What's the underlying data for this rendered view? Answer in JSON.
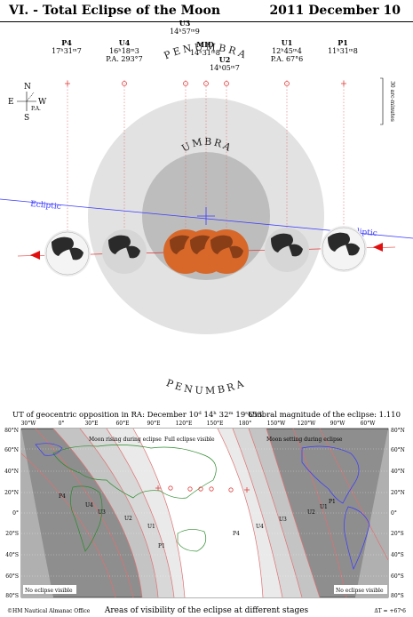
{
  "title": {
    "left": "VI. - Total Eclipse of the Moon",
    "right": "2011 December 10"
  },
  "phases": [
    {
      "id": "p4",
      "name": "P4",
      "time": "17ʰ31ᵐ7",
      "pa": ""
    },
    {
      "id": "u4",
      "name": "U4",
      "time": "16ʰ18ᵐ3",
      "pa": "P.A. 293°7"
    },
    {
      "id": "u3",
      "name": "U3",
      "time": "14ʰ57ᵐ9",
      "pa": ""
    },
    {
      "id": "mid",
      "name": "MID",
      "time": "14ʰ31ᵐ8",
      "pa": ""
    },
    {
      "id": "u2",
      "name": "U2",
      "time": "14ʰ05ᵐ7",
      "pa": ""
    },
    {
      "id": "u1",
      "name": "U1",
      "time": "12ʰ45ᵐ4",
      "pa": "P.A. 67°6"
    },
    {
      "id": "p1",
      "name": "P1",
      "time": "11ʰ31ᵐ8",
      "pa": ""
    }
  ],
  "compass": {
    "n": "N",
    "s": "S",
    "e": "E",
    "w": "W",
    "pa": "P.A."
  },
  "scale_label": "30 arc-minutes",
  "penumbra_label": "PENUMBRA",
  "umbra_label": "UMBRA",
  "ecliptic_label": "Ecliptic",
  "opposition": "UT of geocentric opposition in RA: December 10ᵈ 14ʰ 32ᵐ 19ˢ653",
  "magnitude": "Umbral magnitude of the eclipse: 1.110",
  "map": {
    "lon_labels": [
      "30°W",
      "0°",
      "30°E",
      "60°E",
      "90°E",
      "120°E",
      "150°E",
      "180°",
      "150°W",
      "120°W",
      "90°W",
      "60°W"
    ],
    "lat_labels": [
      "80°N",
      "60°N",
      "40°N",
      "20°N",
      "0°",
      "20°S",
      "40°S",
      "60°S",
      "80°S"
    ],
    "annotations": {
      "moon_rising": "Moon rising during eclipse",
      "full_visible": "Full eclipse visible",
      "moon_setting": "Moon setting during eclipse",
      "no_visible_left": "No eclipse visible",
      "no_visible_right": "No eclipse visible"
    },
    "zone_labels": [
      "P4",
      "U4",
      "U3",
      "U2",
      "U1",
      "P1",
      "P1",
      "U1",
      "U2",
      "U3",
      "U4",
      "P4"
    ]
  },
  "footer": {
    "left": "©HM Nautical Almanac Office",
    "center": "Areas of visibility of the eclipse at different stages",
    "right": "ΔT = +67ˢ6"
  },
  "colors": {
    "penumbra": "#e2e2e2",
    "umbra": "#bdbdbd",
    "eclipsed_moon": "#d8682a",
    "ecliptic": "#3a3aff",
    "arrow": "#e01010",
    "night": "#8e8e8e"
  }
}
